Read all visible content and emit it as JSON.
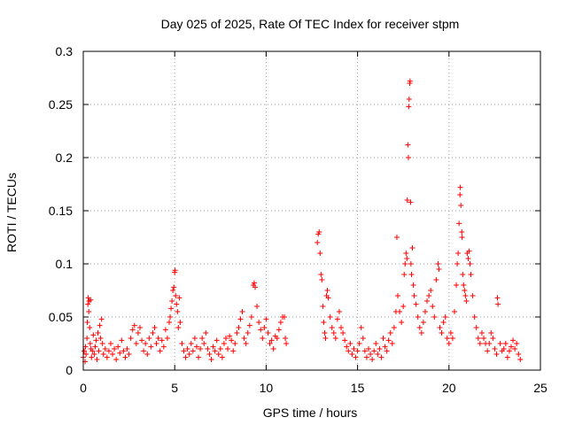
{
  "chart_data": {
    "type": "scatter",
    "title": "Day 025 of 2025, Rate Of TEC Index for receiver stpm",
    "xlabel": "GPS time / hours",
    "ylabel": "ROTI / TECUs",
    "xlim": [
      0,
      25
    ],
    "ylim": [
      0,
      0.3
    ],
    "xticks": [
      0,
      5,
      10,
      15,
      20,
      25
    ],
    "yticks": [
      0,
      0.05,
      0.1,
      0.15,
      0.2,
      0.25,
      0.3
    ],
    "xtick_labels": [
      "0",
      "5",
      "10",
      "15",
      "20",
      "25"
    ],
    "ytick_labels": [
      "0",
      "0.05",
      "0.1",
      "0.15",
      "0.2",
      "0.25",
      "0.3"
    ],
    "grid": true,
    "marker": "+",
    "color": "#ff0000",
    "series": [
      {
        "name": "ROTI",
        "points": [
          [
            0.0,
            0.012
          ],
          [
            0.05,
            0.018
          ],
          [
            0.1,
            0.008
          ],
          [
            0.12,
            0.022
          ],
          [
            0.15,
            0.015
          ],
          [
            0.2,
            0.03
          ],
          [
            0.22,
            0.045
          ],
          [
            0.25,
            0.062
          ],
          [
            0.27,
            0.068
          ],
          [
            0.3,
            0.055
          ],
          [
            0.32,
            0.065
          ],
          [
            0.35,
            0.04
          ],
          [
            0.38,
            0.025
          ],
          [
            0.4,
            0.066
          ],
          [
            0.42,
            0.02
          ],
          [
            0.45,
            0.012
          ],
          [
            0.5,
            0.018
          ],
          [
            0.55,
            0.033
          ],
          [
            0.6,
            0.015
          ],
          [
            0.65,
            0.022
          ],
          [
            0.7,
            0.028
          ],
          [
            0.75,
            0.01
          ],
          [
            0.8,
            0.035
          ],
          [
            0.85,
            0.018
          ],
          [
            0.9,
            0.042
          ],
          [
            0.95,
            0.03
          ],
          [
            1.0,
            0.048
          ],
          [
            1.05,
            0.025
          ],
          [
            1.1,
            0.015
          ],
          [
            1.2,
            0.02
          ],
          [
            1.3,
            0.012
          ],
          [
            1.4,
            0.018
          ],
          [
            1.5,
            0.025
          ],
          [
            1.6,
            0.015
          ],
          [
            1.7,
            0.02
          ],
          [
            1.8,
            0.01
          ],
          [
            1.9,
            0.022
          ],
          [
            2.0,
            0.016
          ],
          [
            2.1,
            0.028
          ],
          [
            2.2,
            0.018
          ],
          [
            2.3,
            0.012
          ],
          [
            2.4,
            0.02
          ],
          [
            2.5,
            0.015
          ],
          [
            2.6,
            0.03
          ],
          [
            2.7,
            0.038
          ],
          [
            2.8,
            0.042
          ],
          [
            2.9,
            0.025
          ],
          [
            3.0,
            0.035
          ],
          [
            3.1,
            0.04
          ],
          [
            3.2,
            0.028
          ],
          [
            3.3,
            0.018
          ],
          [
            3.4,
            0.025
          ],
          [
            3.5,
            0.015
          ],
          [
            3.6,
            0.03
          ],
          [
            3.7,
            0.022
          ],
          [
            3.8,
            0.035
          ],
          [
            3.9,
            0.04
          ],
          [
            4.0,
            0.025
          ],
          [
            4.1,
            0.03
          ],
          [
            4.2,
            0.018
          ],
          [
            4.3,
            0.028
          ],
          [
            4.4,
            0.022
          ],
          [
            4.5,
            0.038
          ],
          [
            4.6,
            0.03
          ],
          [
            4.7,
            0.045
          ],
          [
            4.75,
            0.05
          ],
          [
            4.8,
            0.058
          ],
          [
            4.85,
            0.065
          ],
          [
            4.9,
            0.075
          ],
          [
            4.95,
            0.078
          ],
          [
            5.0,
            0.092
          ],
          [
            5.02,
            0.094
          ],
          [
            5.05,
            0.07
          ],
          [
            5.1,
            0.062
          ],
          [
            5.15,
            0.055
          ],
          [
            5.2,
            0.04
          ],
          [
            5.25,
            0.068
          ],
          [
            5.3,
            0.045
          ],
          [
            5.4,
            0.025
          ],
          [
            5.5,
            0.018
          ],
          [
            5.6,
            0.012
          ],
          [
            5.7,
            0.02
          ],
          [
            5.8,
            0.015
          ],
          [
            5.9,
            0.025
          ],
          [
            6.0,
            0.018
          ],
          [
            6.1,
            0.03
          ],
          [
            6.2,
            0.022
          ],
          [
            6.3,
            0.012
          ],
          [
            6.4,
            0.02
          ],
          [
            6.5,
            0.03
          ],
          [
            6.6,
            0.025
          ],
          [
            6.7,
            0.035
          ],
          [
            6.8,
            0.02
          ],
          [
            6.9,
            0.015
          ],
          [
            7.0,
            0.01
          ],
          [
            7.1,
            0.022
          ],
          [
            7.2,
            0.018
          ],
          [
            7.3,
            0.028
          ],
          [
            7.4,
            0.015
          ],
          [
            7.5,
            0.02
          ],
          [
            7.6,
            0.012
          ],
          [
            7.7,
            0.025
          ],
          [
            7.8,
            0.03
          ],
          [
            7.9,
            0.02
          ],
          [
            8.0,
            0.032
          ],
          [
            8.1,
            0.028
          ],
          [
            8.2,
            0.018
          ],
          [
            8.3,
            0.025
          ],
          [
            8.4,
            0.035
          ],
          [
            8.5,
            0.04
          ],
          [
            8.6,
            0.048
          ],
          [
            8.7,
            0.055
          ],
          [
            8.8,
            0.03
          ],
          [
            8.9,
            0.025
          ],
          [
            9.0,
            0.035
          ],
          [
            9.1,
            0.042
          ],
          [
            9.2,
            0.05
          ],
          [
            9.3,
            0.08
          ],
          [
            9.35,
            0.082
          ],
          [
            9.4,
            0.078
          ],
          [
            9.5,
            0.06
          ],
          [
            9.6,
            0.045
          ],
          [
            9.7,
            0.038
          ],
          [
            9.8,
            0.03
          ],
          [
            9.9,
            0.04
          ],
          [
            10.0,
            0.048
          ],
          [
            10.1,
            0.035
          ],
          [
            10.2,
            0.025
          ],
          [
            10.3,
            0.028
          ],
          [
            10.4,
            0.02
          ],
          [
            10.5,
            0.032
          ],
          [
            10.6,
            0.03
          ],
          [
            10.7,
            0.038
          ],
          [
            10.8,
            0.045
          ],
          [
            10.9,
            0.05
          ],
          [
            11.0,
            0.05
          ],
          [
            11.05,
            0.03
          ],
          [
            11.1,
            0.025
          ],
          [
            12.8,
            0.12
          ],
          [
            12.85,
            0.128
          ],
          [
            12.9,
            0.13
          ],
          [
            12.95,
            0.11
          ],
          [
            13.0,
            0.09
          ],
          [
            13.05,
            0.085
          ],
          [
            13.1,
            0.06
          ],
          [
            13.15,
            0.045
          ],
          [
            13.2,
            0.035
          ],
          [
            13.25,
            0.03
          ],
          [
            13.3,
            0.07
          ],
          [
            13.35,
            0.075
          ],
          [
            13.4,
            0.068
          ],
          [
            13.5,
            0.05
          ],
          [
            13.6,
            0.04
          ],
          [
            13.7,
            0.035
          ],
          [
            13.8,
            0.03
          ],
          [
            13.9,
            0.048
          ],
          [
            14.0,
            0.055
          ],
          [
            14.1,
            0.04
          ],
          [
            14.2,
            0.035
          ],
          [
            14.3,
            0.028
          ],
          [
            14.4,
            0.022
          ],
          [
            14.5,
            0.018
          ],
          [
            14.6,
            0.025
          ],
          [
            14.7,
            0.015
          ],
          [
            14.8,
            0.02
          ],
          [
            14.9,
            0.012
          ],
          [
            15.0,
            0.018
          ],
          [
            15.1,
            0.025
          ],
          [
            15.2,
            0.04
          ],
          [
            15.3,
            0.03
          ],
          [
            15.4,
            0.018
          ],
          [
            15.5,
            0.012
          ],
          [
            15.6,
            0.02
          ],
          [
            15.7,
            0.015
          ],
          [
            15.8,
            0.01
          ],
          [
            15.9,
            0.018
          ],
          [
            16.0,
            0.025
          ],
          [
            16.1,
            0.015
          ],
          [
            16.2,
            0.02
          ],
          [
            16.3,
            0.012
          ],
          [
            16.4,
            0.03
          ],
          [
            16.5,
            0.022
          ],
          [
            16.6,
            0.018
          ],
          [
            16.7,
            0.028
          ],
          [
            16.8,
            0.035
          ],
          [
            16.9,
            0.025
          ],
          [
            17.0,
            0.04
          ],
          [
            17.1,
            0.055
          ],
          [
            17.15,
            0.125
          ],
          [
            17.2,
            0.07
          ],
          [
            17.3,
            0.055
          ],
          [
            17.4,
            0.045
          ],
          [
            17.5,
            0.06
          ],
          [
            17.55,
            0.09
          ],
          [
            17.6,
            0.1
          ],
          [
            17.65,
            0.11
          ],
          [
            17.7,
            0.105
          ],
          [
            17.72,
            0.16
          ],
          [
            17.75,
            0.212
          ],
          [
            17.78,
            0.2
          ],
          [
            17.8,
            0.248
          ],
          [
            17.82,
            0.255
          ],
          [
            17.85,
            0.27
          ],
          [
            17.87,
            0.272
          ],
          [
            17.9,
            0.158
          ],
          [
            17.92,
            0.1
          ],
          [
            17.95,
            0.09
          ],
          [
            18.0,
            0.115
          ],
          [
            18.05,
            0.08
          ],
          [
            18.1,
            0.07
          ],
          [
            18.2,
            0.062
          ],
          [
            18.3,
            0.05
          ],
          [
            18.4,
            0.04
          ],
          [
            18.5,
            0.035
          ],
          [
            18.6,
            0.045
          ],
          [
            18.7,
            0.055
          ],
          [
            18.8,
            0.065
          ],
          [
            18.9,
            0.07
          ],
          [
            19.0,
            0.075
          ],
          [
            19.1,
            0.06
          ],
          [
            19.2,
            0.05
          ],
          [
            19.3,
            0.085
          ],
          [
            19.4,
            0.1
          ],
          [
            19.45,
            0.095
          ],
          [
            19.5,
            0.04
          ],
          [
            19.6,
            0.035
          ],
          [
            19.7,
            0.045
          ],
          [
            19.8,
            0.05
          ],
          [
            19.9,
            0.03
          ],
          [
            20.0,
            0.025
          ],
          [
            20.1,
            0.035
          ],
          [
            20.2,
            0.03
          ],
          [
            20.3,
            0.055
          ],
          [
            20.4,
            0.08
          ],
          [
            20.45,
            0.1
          ],
          [
            20.5,
            0.11
          ],
          [
            20.55,
            0.138
          ],
          [
            20.6,
            0.165
          ],
          [
            20.62,
            0.172
          ],
          [
            20.65,
            0.155
          ],
          [
            20.7,
            0.13
          ],
          [
            20.72,
            0.125
          ],
          [
            20.75,
            0.09
          ],
          [
            20.8,
            0.08
          ],
          [
            20.85,
            0.075
          ],
          [
            20.9,
            0.07
          ],
          [
            20.95,
            0.065
          ],
          [
            21.0,
            0.11
          ],
          [
            21.05,
            0.105
          ],
          [
            21.1,
            0.112
          ],
          [
            21.15,
            0.1
          ],
          [
            21.2,
            0.09
          ],
          [
            21.3,
            0.07
          ],
          [
            21.4,
            0.05
          ],
          [
            21.5,
            0.04
          ],
          [
            21.6,
            0.03
          ],
          [
            21.7,
            0.025
          ],
          [
            21.8,
            0.035
          ],
          [
            21.9,
            0.03
          ],
          [
            22.0,
            0.025
          ],
          [
            22.1,
            0.018
          ],
          [
            22.2,
            0.025
          ],
          [
            22.3,
            0.035
          ],
          [
            22.4,
            0.03
          ],
          [
            22.5,
            0.02
          ],
          [
            22.6,
            0.015
          ],
          [
            22.65,
            0.068
          ],
          [
            22.68,
            0.062
          ],
          [
            22.8,
            0.025
          ],
          [
            22.9,
            0.018
          ],
          [
            23.0,
            0.02
          ],
          [
            23.1,
            0.025
          ],
          [
            23.2,
            0.012
          ],
          [
            23.3,
            0.018
          ],
          [
            23.4,
            0.022
          ],
          [
            23.5,
            0.028
          ],
          [
            23.6,
            0.02
          ],
          [
            23.7,
            0.025
          ],
          [
            23.8,
            0.015
          ],
          [
            23.9,
            0.01
          ]
        ]
      }
    ]
  }
}
